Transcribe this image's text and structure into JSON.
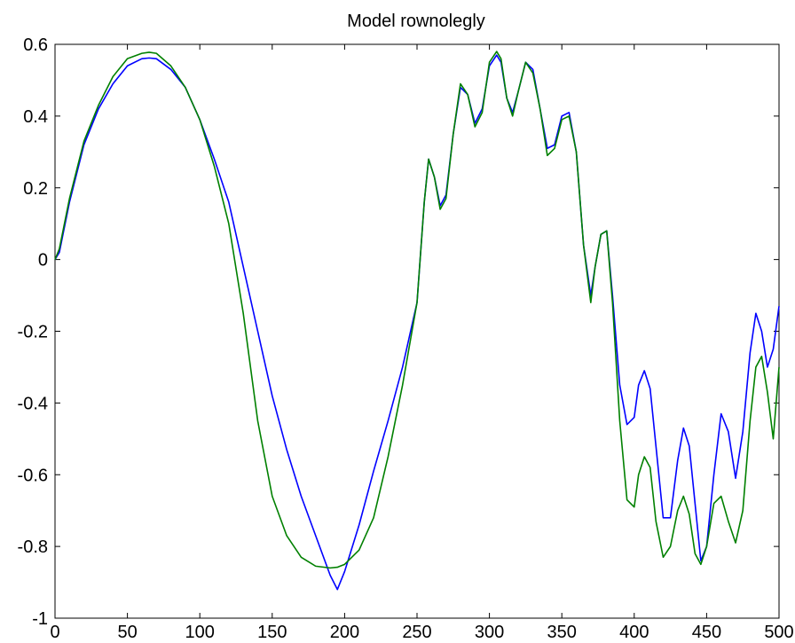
{
  "chart_data": {
    "type": "line",
    "title": "Model rownolegly",
    "xlabel": "",
    "ylabel": "",
    "xlim": [
      0,
      500
    ],
    "ylim": [
      -1,
      0.6
    ],
    "x_ticks": [
      0,
      50,
      100,
      150,
      200,
      250,
      300,
      350,
      400,
      450,
      500
    ],
    "y_ticks": [
      -1,
      -0.8,
      -0.6,
      -0.4,
      -0.2,
      0,
      0.2,
      0.4,
      0.6
    ],
    "grid": false,
    "legend": "none",
    "series": [
      {
        "color": "#0000ff",
        "x": [
          0,
          3,
          6,
          10,
          20,
          30,
          40,
          50,
          60,
          65,
          70,
          80,
          90,
          100,
          110,
          120,
          130,
          140,
          150,
          160,
          170,
          180,
          190,
          195,
          200,
          210,
          220,
          230,
          240,
          250,
          255,
          258,
          262,
          266,
          270,
          275,
          280,
          285,
          290,
          295,
          300,
          305,
          308,
          312,
          316,
          320,
          325,
          330,
          335,
          340,
          345,
          350,
          355,
          360,
          365,
          370,
          373,
          377,
          381,
          385,
          390,
          395,
          400,
          403,
          407,
          411,
          415,
          420,
          425,
          430,
          434,
          438,
          442,
          446,
          450,
          455,
          460,
          465,
          470,
          475,
          480,
          484,
          488,
          492,
          496,
          500
        ],
        "y": [
          0.0,
          0.02,
          0.08,
          0.16,
          0.32,
          0.42,
          0.49,
          0.54,
          0.56,
          0.562,
          0.56,
          0.53,
          0.48,
          0.39,
          0.28,
          0.16,
          -0.02,
          -0.2,
          -0.38,
          -0.53,
          -0.66,
          -0.77,
          -0.88,
          -0.92,
          -0.87,
          -0.74,
          -0.59,
          -0.45,
          -0.3,
          -0.12,
          0.16,
          0.28,
          0.23,
          0.15,
          0.18,
          0.35,
          0.48,
          0.46,
          0.38,
          0.42,
          0.54,
          0.57,
          0.55,
          0.45,
          0.41,
          0.47,
          0.55,
          0.53,
          0.42,
          0.31,
          0.32,
          0.4,
          0.41,
          0.3,
          0.04,
          -0.1,
          -0.02,
          0.07,
          0.08,
          -0.1,
          -0.35,
          -0.46,
          -0.44,
          -0.35,
          -0.31,
          -0.36,
          -0.52,
          -0.72,
          -0.72,
          -0.56,
          -0.47,
          -0.52,
          -0.68,
          -0.84,
          -0.8,
          -0.6,
          -0.43,
          -0.48,
          -0.61,
          -0.48,
          -0.26,
          -0.15,
          -0.2,
          -0.3,
          -0.25,
          -0.13
        ]
      },
      {
        "color": "#008000",
        "x": [
          0,
          3,
          6,
          10,
          20,
          30,
          40,
          50,
          60,
          65,
          70,
          80,
          90,
          100,
          110,
          120,
          130,
          140,
          150,
          160,
          170,
          180,
          190,
          195,
          200,
          210,
          220,
          230,
          240,
          250,
          255,
          258,
          262,
          266,
          270,
          275,
          280,
          285,
          290,
          295,
          300,
          305,
          308,
          312,
          316,
          320,
          325,
          330,
          335,
          340,
          345,
          350,
          355,
          360,
          365,
          370,
          373,
          377,
          381,
          385,
          390,
          395,
          400,
          403,
          407,
          411,
          415,
          420,
          425,
          430,
          434,
          438,
          442,
          446,
          450,
          455,
          460,
          465,
          470,
          475,
          480,
          484,
          488,
          492,
          496,
          500
        ],
        "y": [
          0.0,
          0.03,
          0.09,
          0.17,
          0.33,
          0.43,
          0.51,
          0.56,
          0.575,
          0.578,
          0.575,
          0.54,
          0.48,
          0.39,
          0.26,
          0.1,
          -0.15,
          -0.45,
          -0.66,
          -0.77,
          -0.83,
          -0.855,
          -0.86,
          -0.858,
          -0.85,
          -0.81,
          -0.72,
          -0.55,
          -0.35,
          -0.12,
          0.16,
          0.28,
          0.23,
          0.14,
          0.17,
          0.35,
          0.49,
          0.46,
          0.37,
          0.41,
          0.55,
          0.58,
          0.56,
          0.45,
          0.4,
          0.47,
          0.55,
          0.52,
          0.42,
          0.29,
          0.31,
          0.39,
          0.4,
          0.3,
          0.04,
          -0.12,
          -0.02,
          0.07,
          0.08,
          -0.12,
          -0.45,
          -0.67,
          -0.69,
          -0.6,
          -0.55,
          -0.58,
          -0.73,
          -0.83,
          -0.8,
          -0.7,
          -0.66,
          -0.71,
          -0.82,
          -0.85,
          -0.8,
          -0.68,
          -0.66,
          -0.73,
          -0.79,
          -0.7,
          -0.45,
          -0.3,
          -0.27,
          -0.37,
          -0.5,
          -0.3
        ]
      }
    ]
  }
}
